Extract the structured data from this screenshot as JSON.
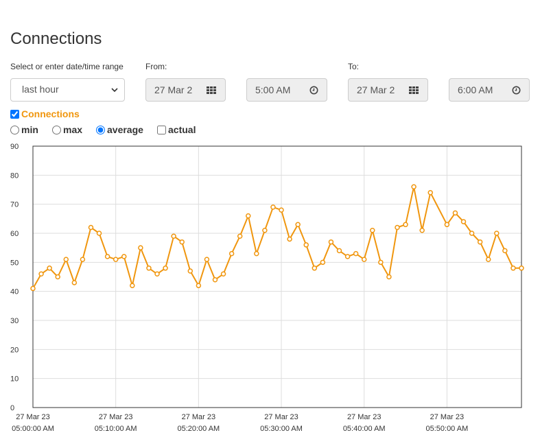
{
  "page": {
    "title": "Connections"
  },
  "range": {
    "label": "Select or enter date/time range",
    "selected": "last hour"
  },
  "from": {
    "label": "From:",
    "date": "27 Mar 2",
    "time": "5:00 AM"
  },
  "to": {
    "label": "To:",
    "date": "27 Mar 2",
    "time": "6:00 AM"
  },
  "series_toggle": {
    "label": "Connections",
    "checked": true
  },
  "modes": [
    {
      "label": "min",
      "checked": false
    },
    {
      "label": "max",
      "checked": false
    },
    {
      "label": "average",
      "checked": true
    }
  ],
  "actual": {
    "label": "actual",
    "checked": false
  },
  "colors": {
    "series": "#f0960e",
    "grid": "#dddddd",
    "axis": "#333333"
  },
  "icons": {
    "date_picker": "calendar-grid-icon",
    "time_picker": "clock-icon",
    "select": "chevron-down-icon"
  },
  "chart_data": {
    "type": "line",
    "title": "",
    "xlabel": "",
    "ylabel": "",
    "ylim": [
      0,
      90
    ],
    "yticks": [
      0,
      10,
      20,
      30,
      40,
      50,
      60,
      70,
      80,
      90
    ],
    "xticks": [
      {
        "minute": 0,
        "date": "27 Mar 23",
        "time": "05:00:00 AM"
      },
      {
        "minute": 10,
        "date": "27 Mar 23",
        "time": "05:10:00 AM"
      },
      {
        "minute": 20,
        "date": "27 Mar 23",
        "time": "05:20:00 AM"
      },
      {
        "minute": 30,
        "date": "27 Mar 23",
        "time": "05:30:00 AM"
      },
      {
        "minute": 40,
        "date": "27 Mar 23",
        "time": "05:40:00 AM"
      },
      {
        "minute": 50,
        "date": "27 Mar 23",
        "time": "05:50:00 AM"
      }
    ],
    "grid": true,
    "series": [
      {
        "name": "Connections",
        "x": [
          0,
          1,
          2,
          3,
          4,
          5,
          6,
          7,
          8,
          9,
          10,
          11,
          12,
          13,
          14,
          15,
          16,
          17,
          18,
          19,
          20,
          21,
          22,
          23,
          24,
          25,
          26,
          27,
          28,
          29,
          30,
          31,
          32,
          33,
          34,
          35,
          36,
          37,
          38,
          39,
          40,
          41,
          42,
          43,
          44,
          45,
          46,
          47,
          48,
          50,
          51,
          52,
          53,
          54,
          55,
          56,
          57,
          58,
          59
        ],
        "y": [
          41,
          46,
          48,
          45,
          51,
          43,
          51,
          62,
          60,
          52,
          51,
          52,
          42,
          55,
          48,
          46,
          48,
          59,
          57,
          47,
          42,
          51,
          44,
          46,
          53,
          59,
          66,
          53,
          61,
          69,
          68,
          58,
          63,
          56,
          48,
          50,
          57,
          54,
          52,
          53,
          51,
          61,
          50,
          45,
          62,
          63,
          76,
          61,
          74,
          63,
          67,
          64,
          60,
          57,
          51,
          60,
          54,
          48,
          48
        ]
      }
    ]
  }
}
